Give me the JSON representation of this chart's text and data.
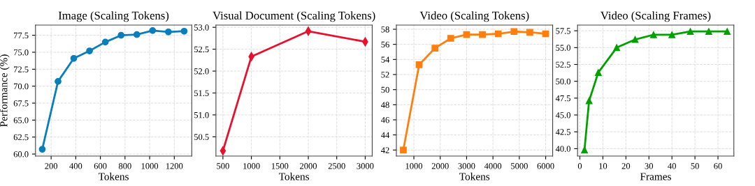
{
  "chart_data": [
    {
      "type": "line",
      "title": "Image (Scaling Tokens)",
      "xlabel": "Tokens",
      "ylabel": "Performance (%)",
      "marker": "circle",
      "line_style": "solid",
      "grid": true,
      "legend": false,
      "x": [
        128,
        256,
        384,
        512,
        640,
        768,
        896,
        1024,
        1152,
        1280
      ],
      "series": [
        {
          "color": "#0a7dbb",
          "values": [
            60.7,
            70.7,
            74.1,
            75.2,
            76.5,
            77.5,
            77.6,
            78.2,
            78.0,
            78.1
          ]
        }
      ],
      "xlim": [
        73,
        1342
      ],
      "xticks": [
        200,
        400,
        600,
        800,
        1000,
        1200
      ],
      "ylim": [
        59.7,
        79.0
      ],
      "yticks": [
        {
          "value": 60,
          "label": "60.0"
        },
        62.5,
        {
          "value": 65,
          "label": "65.0"
        },
        67.5,
        {
          "value": 70,
          "label": "70.0"
        },
        72.5,
        {
          "value": 75,
          "label": "75.0"
        },
        77.5
      ]
    },
    {
      "type": "line",
      "title": "Visual Document (Scaling Tokens)",
      "xlabel": "Tokens",
      "marker": "diamond",
      "line_style": "solid",
      "grid": true,
      "legend": false,
      "x": [
        500,
        1000,
        2000,
        3000
      ],
      "series": [
        {
          "color": "#e8112d",
          "values": [
            50.18,
            52.33,
            52.91,
            52.67
          ]
        }
      ],
      "xlim": [
        377,
        3123
      ],
      "xticks": [
        500,
        1000,
        1500,
        2000,
        2500,
        3000
      ],
      "ylim": [
        50.06,
        53.05
      ],
      "yticks": [
        50.5,
        {
          "value": 51,
          "label": "51.0"
        },
        51.5,
        {
          "value": 52,
          "label": "52.0"
        },
        52.5,
        {
          "value": 53,
          "label": "53.0"
        }
      ]
    },
    {
      "type": "line",
      "title": "Video (Scaling Tokens)",
      "xlabel": "Tokens",
      "marker": "square",
      "line_style": "solid",
      "grid": true,
      "legend": false,
      "x": [
        600,
        1200,
        1800,
        2400,
        3000,
        3600,
        4200,
        4800,
        5400,
        6000
      ],
      "series": [
        {
          "color": "#ff7f0e",
          "values": [
            42.0,
            53.3,
            55.5,
            56.8,
            57.3,
            57.3,
            57.4,
            57.7,
            57.6,
            57.4
          ]
        }
      ],
      "xlim": [
        336,
        6265
      ],
      "xticks": [
        1000,
        2000,
        3000,
        4000,
        5000,
        6000
      ],
      "ylim": [
        41.2,
        58.55
      ],
      "yticks": [
        42,
        44,
        46,
        48,
        50,
        52,
        54,
        56,
        58
      ]
    },
    {
      "type": "line",
      "title": "Video (Scaling Frames)",
      "xlabel": "Frames",
      "marker": "triangle",
      "line_style": "solid",
      "grid": true,
      "legend": false,
      "x": [
        2,
        4,
        8,
        16,
        24,
        32,
        40,
        48,
        56,
        64
      ],
      "series": [
        {
          "color": "#00a000",
          "values": [
            39.8,
            47.1,
            51.3,
            55.0,
            56.2,
            56.9,
            56.9,
            57.4,
            57.4,
            57.4
          ]
        }
      ],
      "xlim": [
        -1.0,
        66.9
      ],
      "xticks": [
        0,
        10,
        20,
        30,
        40,
        50,
        60
      ],
      "ylim": [
        38.9,
        58.34
      ],
      "yticks": [
        {
          "value": 40,
          "label": "40.0"
        },
        42.5,
        {
          "value": 45,
          "label": "45.0"
        },
        47.5,
        {
          "value": 50,
          "label": "50.0"
        },
        52.5,
        {
          "value": 55,
          "label": "55.0"
        },
        57.5
      ]
    }
  ]
}
